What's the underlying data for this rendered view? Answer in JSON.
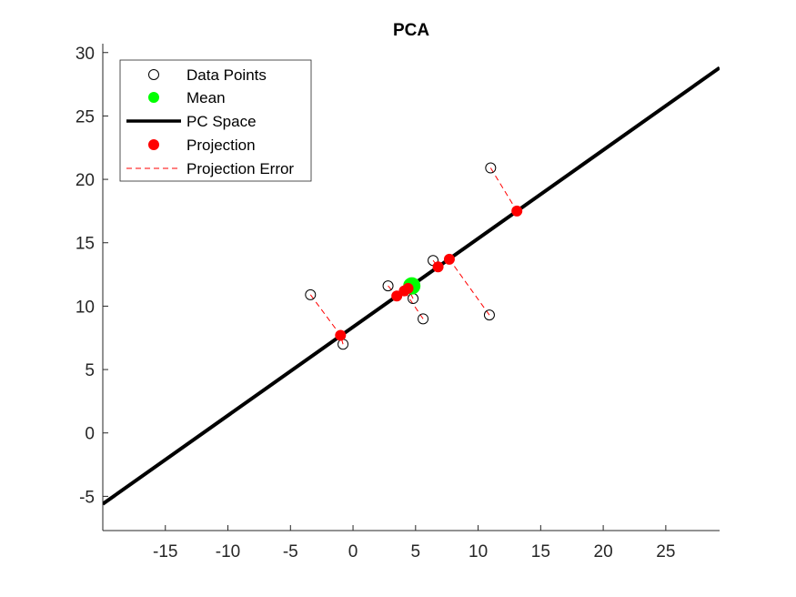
{
  "chart_data": {
    "type": "scatter",
    "title": "PCA",
    "xlabel": "",
    "ylabel": "",
    "xlim": [
      -20,
      29.3
    ],
    "ylim": [
      -7.7,
      30.7
    ],
    "xticks": [
      -15,
      -10,
      -5,
      0,
      5,
      10,
      15,
      20,
      25
    ],
    "yticks": [
      -5,
      0,
      5,
      10,
      15,
      20,
      25,
      30
    ],
    "grid": false,
    "legend_position": "top-left",
    "colors": {
      "data": "#000000",
      "mean": "#00ff00",
      "pc": "#000000",
      "projection": "#ff0000",
      "error": "#ff0000"
    },
    "series": [
      {
        "name": "Data Points",
        "kind": "markers-open",
        "x": [
          -3.4,
          -0.8,
          2.8,
          4.8,
          5.6,
          6.4,
          10.9,
          11.0
        ],
        "y": [
          10.9,
          7.0,
          11.6,
          10.6,
          9.0,
          13.6,
          9.3,
          20.9
        ]
      },
      {
        "name": "Mean",
        "kind": "marker-filled",
        "x": [
          4.7
        ],
        "y": [
          11.6
        ]
      },
      {
        "name": "PC Space",
        "kind": "line",
        "x": [
          -20,
          29.3
        ],
        "y": [
          -5.6,
          28.8
        ]
      },
      {
        "name": "Projection",
        "kind": "markers-filled",
        "x": [
          -1.0,
          3.5,
          4.1,
          4.4,
          6.8,
          7.7,
          13.1
        ],
        "y": [
          7.7,
          10.8,
          11.2,
          11.4,
          13.1,
          13.7,
          17.5
        ]
      },
      {
        "name": "Projection Error",
        "kind": "dashed-segments",
        "segments": [
          {
            "from": [
              -3.4,
              10.9
            ],
            "to": [
              -1.0,
              7.7
            ]
          },
          {
            "from": [
              -0.8,
              7.0
            ],
            "to": [
              -1.0,
              7.7
            ]
          },
          {
            "from": [
              2.8,
              11.6
            ],
            "to": [
              3.5,
              10.8
            ]
          },
          {
            "from": [
              4.8,
              10.6
            ],
            "to": [
              4.4,
              11.4
            ]
          },
          {
            "from": [
              5.6,
              9.0
            ],
            "to": [
              4.1,
              11.2
            ]
          },
          {
            "from": [
              6.4,
              13.6
            ],
            "to": [
              6.8,
              13.1
            ]
          },
          {
            "from": [
              10.9,
              9.3
            ],
            "to": [
              7.7,
              13.7
            ]
          },
          {
            "from": [
              11.0,
              20.9
            ],
            "to": [
              13.1,
              17.5
            ]
          }
        ]
      }
    ]
  }
}
